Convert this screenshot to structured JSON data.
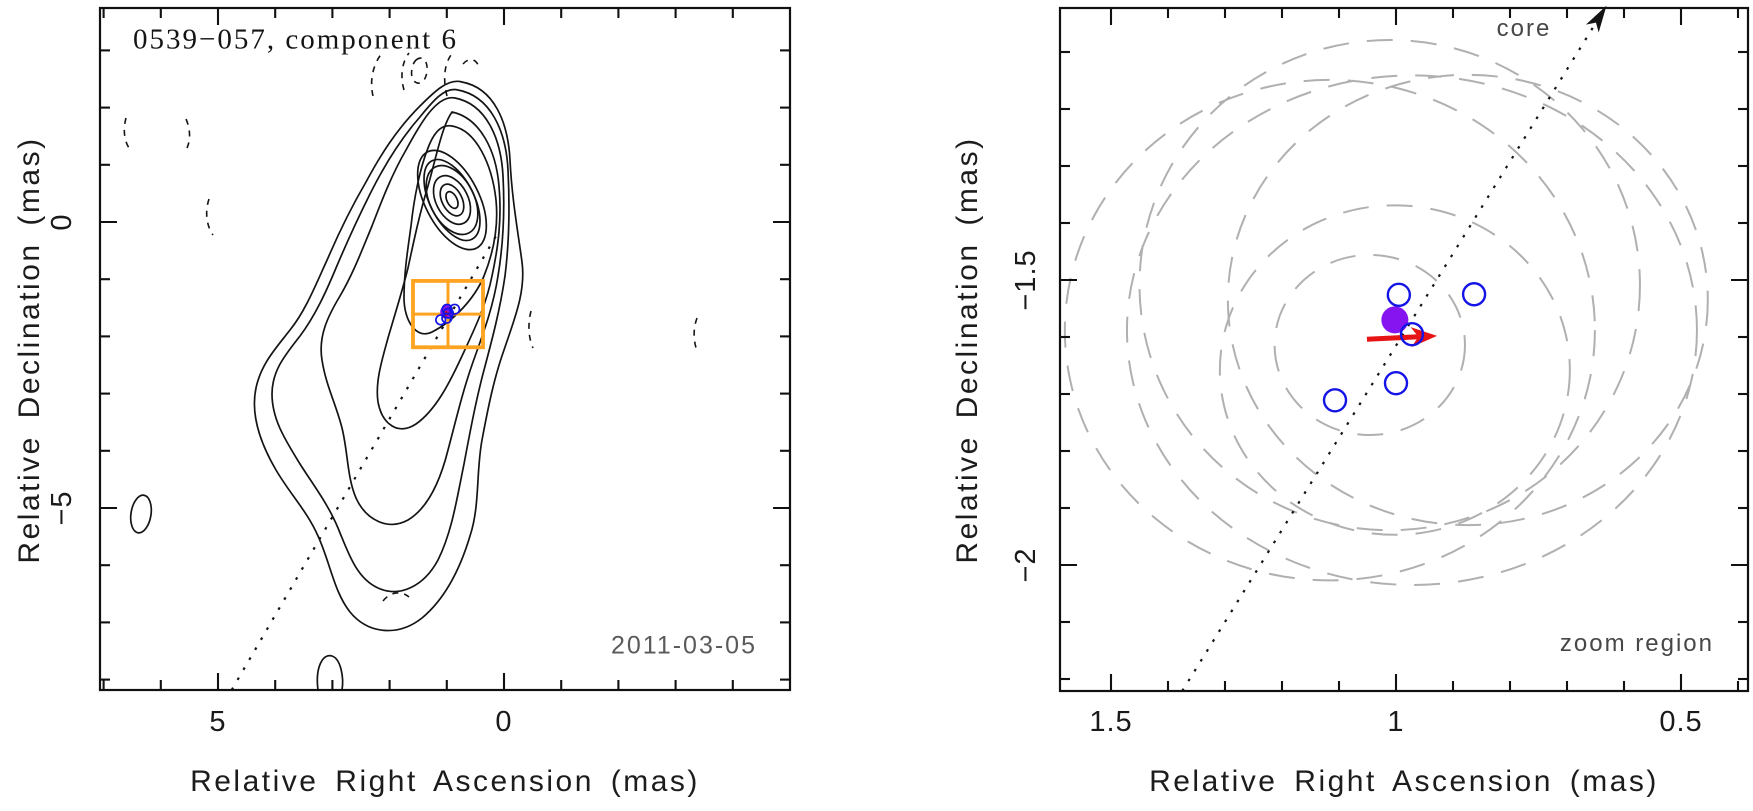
{
  "colors": {
    "background": "#ffffff",
    "axis": "#111111",
    "contour": "#141414",
    "zoom_box": "#ffa320",
    "open_circle": "#1414e6",
    "filled_circle": "#8514f0",
    "arrow_red": "#e61414",
    "beam_ellipse_gray": "#b0b0b0",
    "muted_text": "#5a5a5a"
  },
  "left_panel": {
    "title": "0539−057, component 6",
    "epoch": "2011-03-05",
    "xlabel": "Relative Right Ascension (mas)",
    "ylabel": "Relative Declination (mas)",
    "x_tick_labels": [
      "5",
      "0"
    ],
    "y_tick_labels": [
      "0",
      "−5"
    ]
  },
  "right_panel": {
    "xlabel": "Relative Right Ascension (mas)",
    "ylabel": "Relative Declination (mas)",
    "x_tick_labels": [
      "1.5",
      "1",
      "0.5"
    ],
    "y_tick_labels": [
      "−1.5",
      "−2"
    ],
    "core_label": "core",
    "corner_label": "zoom region"
  },
  "chart_data": [
    {
      "id": "vlbi-map",
      "type": "contour",
      "title": "0539−057, component 6",
      "epoch": "2011-03-05",
      "xlabel": "Relative Right Ascension (mas)",
      "ylabel": "Relative Declination (mas)",
      "x_axis": {
        "range": [
          7.06,
          -5.03
        ],
        "major_ticks": [
          5,
          0
        ],
        "minor_step": 1
      },
      "y_axis": {
        "range": [
          3.74,
          -8.18
        ],
        "major_ticks": [
          0,
          -5
        ],
        "minor_step": 1
      },
      "grid": false,
      "positive_contour_levels": 11,
      "negative_contours_dashed": true,
      "description": "VLBI total-intensity contour map: bright core near origin, jet/lobe extending to the lower left; dashed arcs are negative contours",
      "zoom_box": {
        "ra_range": [
          1.591,
          0.367
        ],
        "dec_range": [
          -1.03,
          -2.19
        ]
      },
      "component_track_dotted": {
        "from": [
          4.76,
          -8.18
        ],
        "to": [
          0.12,
          -0.21
        ]
      }
    },
    {
      "id": "zoom-region",
      "type": "scatter",
      "xlabel": "Relative Right Ascension (mas)",
      "ylabel": "Relative Declination (mas)",
      "corner_label": "zoom region",
      "core_label": "core",
      "x_axis": {
        "range": [
          1.589,
          0.382
        ],
        "major_ticks": [
          1.5,
          1.0,
          0.5
        ],
        "minor_step": 0.1
      },
      "y_axis": {
        "range": [
          -1.023,
          -2.221
        ],
        "major_ticks": [
          -1.5,
          -2.0
        ],
        "minor_step": 0.1
      },
      "grid": false,
      "epoch_positions_open_circles": [
        [
          0.995,
          -1.526
        ],
        [
          0.863,
          -1.525
        ],
        [
          0.972,
          -1.595
        ],
        [
          1.0,
          -1.681
        ],
        [
          1.107,
          -1.711
        ]
      ],
      "mean_position_filled_circle": [
        1.002,
        -1.57
      ],
      "velocity_arrow": {
        "from": [
          1.051,
          -1.604
        ],
        "to": [
          0.928,
          -1.598
        ]
      },
      "beam_ellipses_dashed": [
        {
          "ra": 1.011,
          "dec": -1.509,
          "rx": 0.439,
          "ry": 0.43
        },
        {
          "ra": 0.874,
          "dec": -1.535,
          "rx": 0.421,
          "ry": 0.395
        },
        {
          "ra": 0.972,
          "dec": -1.588,
          "rx": 0.5,
          "ry": 0.447
        },
        {
          "ra": 1.116,
          "dec": -1.588,
          "rx": 0.465,
          "ry": 0.439
        },
        {
          "ra": 1.002,
          "dec": -1.658,
          "rx": 0.307,
          "ry": 0.289
        },
        {
          "ra": 1.046,
          "dec": -1.614,
          "rx": 0.167,
          "ry": 0.158
        }
      ],
      "core_direction_dotted_arrow": {
        "from": [
          1.375,
          -2.221
        ],
        "to": [
          0.639,
          -1.032
        ]
      }
    }
  ]
}
